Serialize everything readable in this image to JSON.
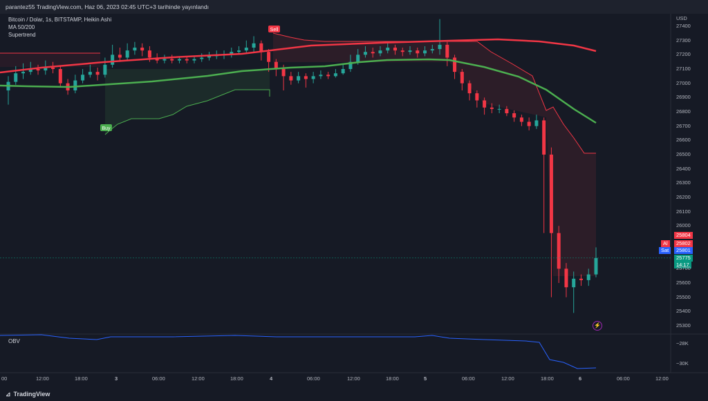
{
  "header": {
    "published": "parantez55 TradingView.com, Haz 06, 2023 02:45 UTC+3 tarihinde yayınlandı"
  },
  "legend": {
    "symbol": "Bitcoin / Dolar, 1s, BITSTAMP, Heikin Ashi",
    "ma": "MA 50/200",
    "supertrend": "Supertrend"
  },
  "signals": {
    "sell": "Sell",
    "buy": "Buy"
  },
  "price_axis": {
    "currency": "USD",
    "ticks": [
      "27400",
      "27300",
      "27200",
      "27100",
      "27000",
      "26900",
      "26800",
      "26700",
      "26600",
      "26500",
      "26400",
      "26300",
      "26200",
      "26100",
      "26000",
      "25700",
      "25600",
      "25500",
      "25400",
      "25300"
    ]
  },
  "price_tags": {
    "top": "25804",
    "al_label": "Al",
    "al_value": "25802",
    "sat_label": "Sat",
    "sat_value": "25801",
    "last": "25775",
    "countdown": "14:17"
  },
  "obv": {
    "label": "OBV",
    "ticks": [
      "−28K",
      "−30K"
    ]
  },
  "time_axis": {
    "ticks": [
      "00",
      "12:00",
      "18:00",
      "3",
      "06:00",
      "12:00",
      "18:00",
      "4",
      "06:00",
      "12:00",
      "18:00",
      "5",
      "06:00",
      "12:00",
      "18:00",
      "6",
      "06:00",
      "12:00"
    ]
  },
  "footer": {
    "brand": "TradingView"
  },
  "colors": {
    "up": "#26a69a",
    "down": "#f23645",
    "ma50": "#4caf50",
    "ma200": "#f23645",
    "obv": "#2962ff",
    "bg": "#161a25"
  },
  "chart_data": {
    "type": "candlestick",
    "series": [
      {
        "name": "MA 50/200"
      },
      {
        "name": "Supertrend"
      },
      {
        "name": "OBV"
      }
    ],
    "x": [
      "00",
      "12:00",
      "18:00",
      "3",
      "06:00",
      "12:00",
      "18:00",
      "4",
      "06:00",
      "12:00",
      "18:00",
      "5",
      "06:00",
      "12:00",
      "18:00",
      "6",
      "06:00",
      "12:00"
    ],
    "ylim": [
      25300,
      27400
    ],
    "candles": [
      {
        "o": 26950,
        "c": 27010,
        "h": 27050,
        "l": 26850
      },
      {
        "o": 27010,
        "c": 27070,
        "h": 27120,
        "l": 26990
      },
      {
        "o": 27070,
        "c": 27080,
        "h": 27140,
        "l": 27030
      },
      {
        "o": 27080,
        "c": 27100,
        "h": 27150,
        "l": 27060
      },
      {
        "o": 27100,
        "c": 27090,
        "h": 27130,
        "l": 27060
      },
      {
        "o": 27090,
        "c": 27110,
        "h": 27160,
        "l": 27060
      },
      {
        "o": 27110,
        "c": 27100,
        "h": 27150,
        "l": 27070
      },
      {
        "o": 27100,
        "c": 27000,
        "h": 27120,
        "l": 26970
      },
      {
        "o": 27000,
        "c": 26950,
        "h": 27030,
        "l": 26920
      },
      {
        "o": 26950,
        "c": 27020,
        "h": 27060,
        "l": 26930
      },
      {
        "o": 27020,
        "c": 27060,
        "h": 27100,
        "l": 27000
      },
      {
        "o": 27060,
        "c": 27080,
        "h": 27130,
        "l": 27040
      },
      {
        "o": 27080,
        "c": 27060,
        "h": 27110,
        "l": 27020
      },
      {
        "o": 27060,
        "c": 27130,
        "h": 27180,
        "l": 27040
      },
      {
        "o": 27130,
        "c": 27200,
        "h": 27270,
        "l": 27110
      },
      {
        "o": 27200,
        "c": 27180,
        "h": 27250,
        "l": 27150
      },
      {
        "o": 27180,
        "c": 27230,
        "h": 27280,
        "l": 27160
      },
      {
        "o": 27230,
        "c": 27250,
        "h": 27290,
        "l": 27200
      },
      {
        "o": 27250,
        "c": 27230,
        "h": 27280,
        "l": 27190
      },
      {
        "o": 27230,
        "c": 27180,
        "h": 27260,
        "l": 27150
      },
      {
        "o": 27180,
        "c": 27160,
        "h": 27210,
        "l": 27140
      },
      {
        "o": 27160,
        "c": 27170,
        "h": 27200,
        "l": 27140
      },
      {
        "o": 27170,
        "c": 27160,
        "h": 27200,
        "l": 27140
      },
      {
        "o": 27160,
        "c": 27170,
        "h": 27190,
        "l": 27140
      },
      {
        "o": 27170,
        "c": 27160,
        "h": 27190,
        "l": 27140
      },
      {
        "o": 27160,
        "c": 27170,
        "h": 27190,
        "l": 27140
      },
      {
        "o": 27170,
        "c": 27180,
        "h": 27210,
        "l": 27150
      },
      {
        "o": 27180,
        "c": 27190,
        "h": 27220,
        "l": 27160
      },
      {
        "o": 27190,
        "c": 27200,
        "h": 27230,
        "l": 27170
      },
      {
        "o": 27200,
        "c": 27200,
        "h": 27230,
        "l": 27170
      },
      {
        "o": 27200,
        "c": 27220,
        "h": 27250,
        "l": 27180
      },
      {
        "o": 27220,
        "c": 27230,
        "h": 27260,
        "l": 27200
      },
      {
        "o": 27230,
        "c": 27250,
        "h": 27300,
        "l": 27210
      },
      {
        "o": 27250,
        "c": 27280,
        "h": 27330,
        "l": 27220
      },
      {
        "o": 27280,
        "c": 27220,
        "h": 27300,
        "l": 27160
      },
      {
        "o": 27220,
        "c": 27150,
        "h": 27240,
        "l": 27080
      },
      {
        "o": 27150,
        "c": 27100,
        "h": 27170,
        "l": 27050
      },
      {
        "o": 27100,
        "c": 27050,
        "h": 27130,
        "l": 26950
      },
      {
        "o": 27050,
        "c": 27020,
        "h": 27080,
        "l": 26990
      },
      {
        "o": 27020,
        "c": 27050,
        "h": 27080,
        "l": 27000
      },
      {
        "o": 27050,
        "c": 27030,
        "h": 27070,
        "l": 26970
      },
      {
        "o": 27030,
        "c": 27050,
        "h": 27080,
        "l": 27000
      },
      {
        "o": 27050,
        "c": 27060,
        "h": 27090,
        "l": 27030
      },
      {
        "o": 27060,
        "c": 27050,
        "h": 27080,
        "l": 27030
      },
      {
        "o": 27050,
        "c": 27070,
        "h": 27100,
        "l": 27040
      },
      {
        "o": 27070,
        "c": 27100,
        "h": 27130,
        "l": 27060
      },
      {
        "o": 27100,
        "c": 27150,
        "h": 27200,
        "l": 27080
      },
      {
        "o": 27150,
        "c": 27200,
        "h": 27240,
        "l": 27130
      },
      {
        "o": 27200,
        "c": 27220,
        "h": 27260,
        "l": 27180
      },
      {
        "o": 27220,
        "c": 27210,
        "h": 27250,
        "l": 27180
      },
      {
        "o": 27210,
        "c": 27230,
        "h": 27260,
        "l": 27190
      },
      {
        "o": 27230,
        "c": 27250,
        "h": 27290,
        "l": 27210
      },
      {
        "o": 27250,
        "c": 27230,
        "h": 27270,
        "l": 27200
      },
      {
        "o": 27230,
        "c": 27220,
        "h": 27250,
        "l": 27190
      },
      {
        "o": 27220,
        "c": 27230,
        "h": 27260,
        "l": 27200
      },
      {
        "o": 27230,
        "c": 27210,
        "h": 27250,
        "l": 27180
      },
      {
        "o": 27210,
        "c": 27230,
        "h": 27260,
        "l": 27190
      },
      {
        "o": 27230,
        "c": 27240,
        "h": 27270,
        "l": 27210
      },
      {
        "o": 27240,
        "c": 27270,
        "h": 27450,
        "l": 27200
      },
      {
        "o": 27270,
        "c": 27180,
        "h": 27290,
        "l": 27120
      },
      {
        "o": 27180,
        "c": 27080,
        "h": 27200,
        "l": 27030
      },
      {
        "o": 27080,
        "c": 27000,
        "h": 27100,
        "l": 26950
      },
      {
        "o": 27000,
        "c": 26930,
        "h": 27020,
        "l": 26880
      },
      {
        "o": 26930,
        "c": 26880,
        "h": 26950,
        "l": 26830
      },
      {
        "o": 26880,
        "c": 26830,
        "h": 26900,
        "l": 26780
      },
      {
        "o": 26830,
        "c": 26820,
        "h": 26860,
        "l": 26790
      },
      {
        "o": 26820,
        "c": 26820,
        "h": 26850,
        "l": 26790
      },
      {
        "o": 26820,
        "c": 26790,
        "h": 26840,
        "l": 26770
      },
      {
        "o": 26790,
        "c": 26760,
        "h": 26810,
        "l": 26730
      },
      {
        "o": 26760,
        "c": 26730,
        "h": 26780,
        "l": 26700
      },
      {
        "o": 26730,
        "c": 26700,
        "h": 26760,
        "l": 26670
      },
      {
        "o": 26700,
        "c": 26740,
        "h": 26780,
        "l": 26680
      },
      {
        "o": 26740,
        "c": 26500,
        "h": 26760,
        "l": 25950
      },
      {
        "o": 26500,
        "c": 25950,
        "h": 26550,
        "l": 25500
      },
      {
        "o": 25950,
        "c": 25700,
        "h": 26000,
        "l": 25600
      },
      {
        "o": 25700,
        "c": 25570,
        "h": 25740,
        "l": 25500
      },
      {
        "o": 25570,
        "c": 25630,
        "h": 25680,
        "l": 25390
      },
      {
        "o": 25630,
        "c": 25620,
        "h": 25660,
        "l": 25580
      },
      {
        "o": 25620,
        "c": 25660,
        "h": 25700,
        "l": 25580
      },
      {
        "o": 25660,
        "c": 25775,
        "h": 25850,
        "l": 25640
      }
    ]
  }
}
